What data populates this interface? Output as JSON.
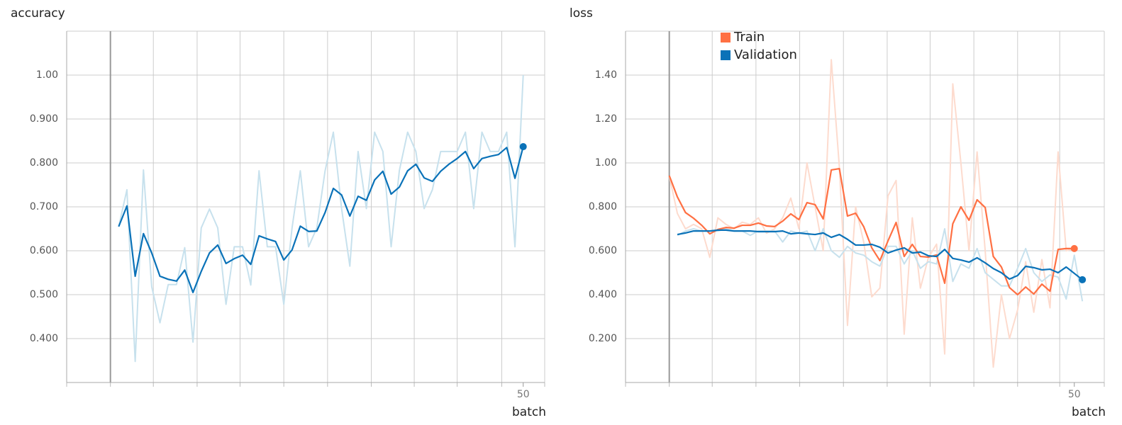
{
  "chart_data": [
    {
      "type": "line",
      "title": "accuracy",
      "x_label": "batch",
      "x": [
        1,
        2,
        3,
        4,
        5,
        6,
        7,
        8,
        9,
        10,
        11,
        12,
        13,
        14,
        15,
        16,
        17,
        18,
        19,
        20,
        21,
        22,
        23,
        24,
        25,
        26,
        27,
        28,
        29,
        30,
        31,
        32,
        33,
        34,
        35,
        36,
        37,
        38,
        39,
        40,
        41,
        42,
        43,
        44,
        45,
        46,
        47,
        48,
        49,
        50
      ],
      "series": [
        {
          "color": "#0a72b8",
          "raw_color": "#c7e1ed",
          "values": [
            0.655,
            0.702,
            0.542,
            0.639,
            0.595,
            0.542,
            0.535,
            0.531,
            0.556,
            0.505,
            0.553,
            0.595,
            0.613,
            0.571,
            0.582,
            0.59,
            0.569,
            0.634,
            0.627,
            0.621,
            0.579,
            0.602,
            0.656,
            0.644,
            0.645,
            0.687,
            0.742,
            0.727,
            0.679,
            0.724,
            0.715,
            0.761,
            0.781,
            0.729,
            0.745,
            0.782,
            0.797,
            0.766,
            0.758,
            0.781,
            0.797,
            0.81,
            0.826,
            0.787,
            0.81,
            0.815,
            0.819,
            0.835,
            0.765,
            0.837
          ],
          "raw_values": [
            0.655,
            0.739,
            0.348,
            0.784,
            0.518,
            0.436,
            0.523,
            0.523,
            0.607,
            0.392,
            0.652,
            0.695,
            0.652,
            0.478,
            0.609,
            0.609,
            0.522,
            0.782,
            0.609,
            0.609,
            0.478,
            0.652,
            0.782,
            0.609,
            0.652,
            0.782,
            0.87,
            0.696,
            0.565,
            0.826,
            0.696,
            0.87,
            0.826,
            0.609,
            0.783,
            0.87,
            0.826,
            0.696,
            0.739,
            0.826,
            0.826,
            0.826,
            0.87,
            0.696,
            0.87,
            0.826,
            0.826,
            0.87,
            0.609,
            1.0
          ]
        }
      ],
      "xlim": [
        -5.3,
        52.6
      ],
      "xticks": [
        50
      ],
      "xgrid": [
        -5.3,
        0,
        5.2,
        10.5,
        15.7,
        21,
        26.3,
        31.6,
        36.8,
        42,
        47.4,
        52.6
      ],
      "ylim": [
        0.3,
        1.1
      ],
      "yticks": [
        {
          "value": 0.4,
          "label": "0.400"
        },
        {
          "value": 0.5,
          "label": "0.500"
        },
        {
          "value": 0.6,
          "label": "0.600"
        },
        {
          "value": 0.7,
          "label": "0.700"
        },
        {
          "value": 0.8,
          "label": "0.800"
        },
        {
          "value": 0.9,
          "label": "0.900"
        },
        {
          "value": 1.0,
          "label": "1.00"
        }
      ],
      "grid": true
    },
    {
      "type": "line",
      "title": "loss",
      "x_label": "batch",
      "legend": "top",
      "x": [
        0,
        1,
        2,
        3,
        4,
        5,
        6,
        7,
        8,
        9,
        10,
        11,
        12,
        13,
        14,
        15,
        16,
        17,
        18,
        19,
        20,
        21,
        22,
        23,
        24,
        25,
        26,
        27,
        28,
        29,
        30,
        31,
        32,
        33,
        34,
        35,
        36,
        37,
        38,
        39,
        40,
        41,
        42,
        43,
        44,
        45,
        46,
        47,
        48,
        49,
        50,
        51
      ],
      "series": [
        {
          "name": "Train",
          "color": "#ff7043",
          "raw_color": "#fddbce",
          "values": [
            0.942,
            0.845,
            0.774,
            0.748,
            0.716,
            0.677,
            0.697,
            0.706,
            0.703,
            0.716,
            0.716,
            0.726,
            0.713,
            0.71,
            0.735,
            0.768,
            0.742,
            0.819,
            0.81,
            0.745,
            0.968,
            0.974,
            0.758,
            0.771,
            0.71,
            0.613,
            0.555,
            0.645,
            0.729,
            0.574,
            0.629,
            0.574,
            0.571,
            0.581,
            0.452,
            0.723,
            0.8,
            0.739,
            0.832,
            0.797,
            0.574,
            0.526,
            0.432,
            0.4,
            0.435,
            0.403,
            0.448,
            0.416,
            0.606,
            0.61,
            0.61,
            null
          ],
          "raw_values": [
            0.94,
            0.77,
            0.7,
            0.72,
            0.7,
            0.57,
            0.75,
            0.72,
            0.7,
            0.73,
            0.72,
            0.75,
            0.68,
            0.7,
            0.75,
            0.84,
            0.7,
            1.0,
            0.8,
            0.6,
            1.47,
            0.98,
            0.26,
            0.8,
            0.64,
            0.39,
            0.43,
            0.85,
            0.92,
            0.22,
            0.75,
            0.43,
            0.57,
            0.63,
            0.13,
            1.36,
            1.0,
            0.6,
            1.05,
            0.6,
            0.07,
            0.4,
            0.2,
            0.33,
            0.55,
            0.32,
            0.56,
            0.34,
            1.05,
            0.6,
            0.61,
            null
          ]
        },
        {
          "name": "Validation",
          "color": "#0a72b8",
          "raw_color": "#c7e1ed",
          "values": [
            null,
            0.674,
            0.681,
            0.69,
            0.69,
            0.69,
            0.694,
            0.694,
            0.69,
            0.69,
            0.69,
            0.687,
            0.687,
            0.687,
            0.69,
            0.677,
            0.681,
            0.677,
            0.674,
            0.681,
            0.661,
            0.674,
            0.652,
            0.626,
            0.626,
            0.629,
            0.616,
            0.59,
            0.603,
            0.613,
            0.59,
            0.594,
            0.577,
            0.574,
            0.606,
            0.565,
            0.558,
            0.548,
            0.568,
            0.545,
            0.519,
            0.5,
            0.471,
            0.487,
            0.529,
            0.523,
            0.513,
            0.516,
            0.5,
            0.526,
            0.497,
            0.468
          ],
          "raw_values": [
            null,
            0.67,
            0.69,
            0.7,
            0.69,
            0.69,
            0.69,
            0.7,
            0.69,
            0.69,
            0.67,
            0.69,
            0.69,
            0.69,
            0.64,
            0.69,
            0.68,
            0.69,
            0.6,
            0.7,
            0.6,
            0.57,
            0.62,
            0.59,
            0.58,
            0.55,
            0.53,
            0.62,
            0.62,
            0.54,
            0.6,
            0.52,
            0.55,
            0.54,
            0.7,
            0.46,
            0.54,
            0.52,
            0.61,
            0.5,
            0.47,
            0.44,
            0.44,
            0.52,
            0.61,
            0.5,
            0.46,
            0.49,
            0.48,
            0.38,
            0.58,
            0.37
          ]
        }
      ],
      "xlim": [
        -5.4,
        53.7
      ],
      "xticks": [
        50
      ],
      "xgrid": [
        -5.4,
        0,
        5.3,
        10.7,
        16.1,
        21.5,
        26.9,
        32.2,
        37.6,
        43,
        48.2,
        53.7
      ],
      "ylim": [
        0,
        1.6
      ],
      "yticks": [
        {
          "value": 0.2,
          "label": "0.200"
        },
        {
          "value": 0.4,
          "label": "0.400"
        },
        {
          "value": 0.6,
          "label": "0.600"
        },
        {
          "value": 0.8,
          "label": "0.800"
        },
        {
          "value": 1.0,
          "label": "1.00"
        },
        {
          "value": 1.2,
          "label": "1.20"
        },
        {
          "value": 1.4,
          "label": "1.40"
        }
      ],
      "grid": true
    }
  ]
}
